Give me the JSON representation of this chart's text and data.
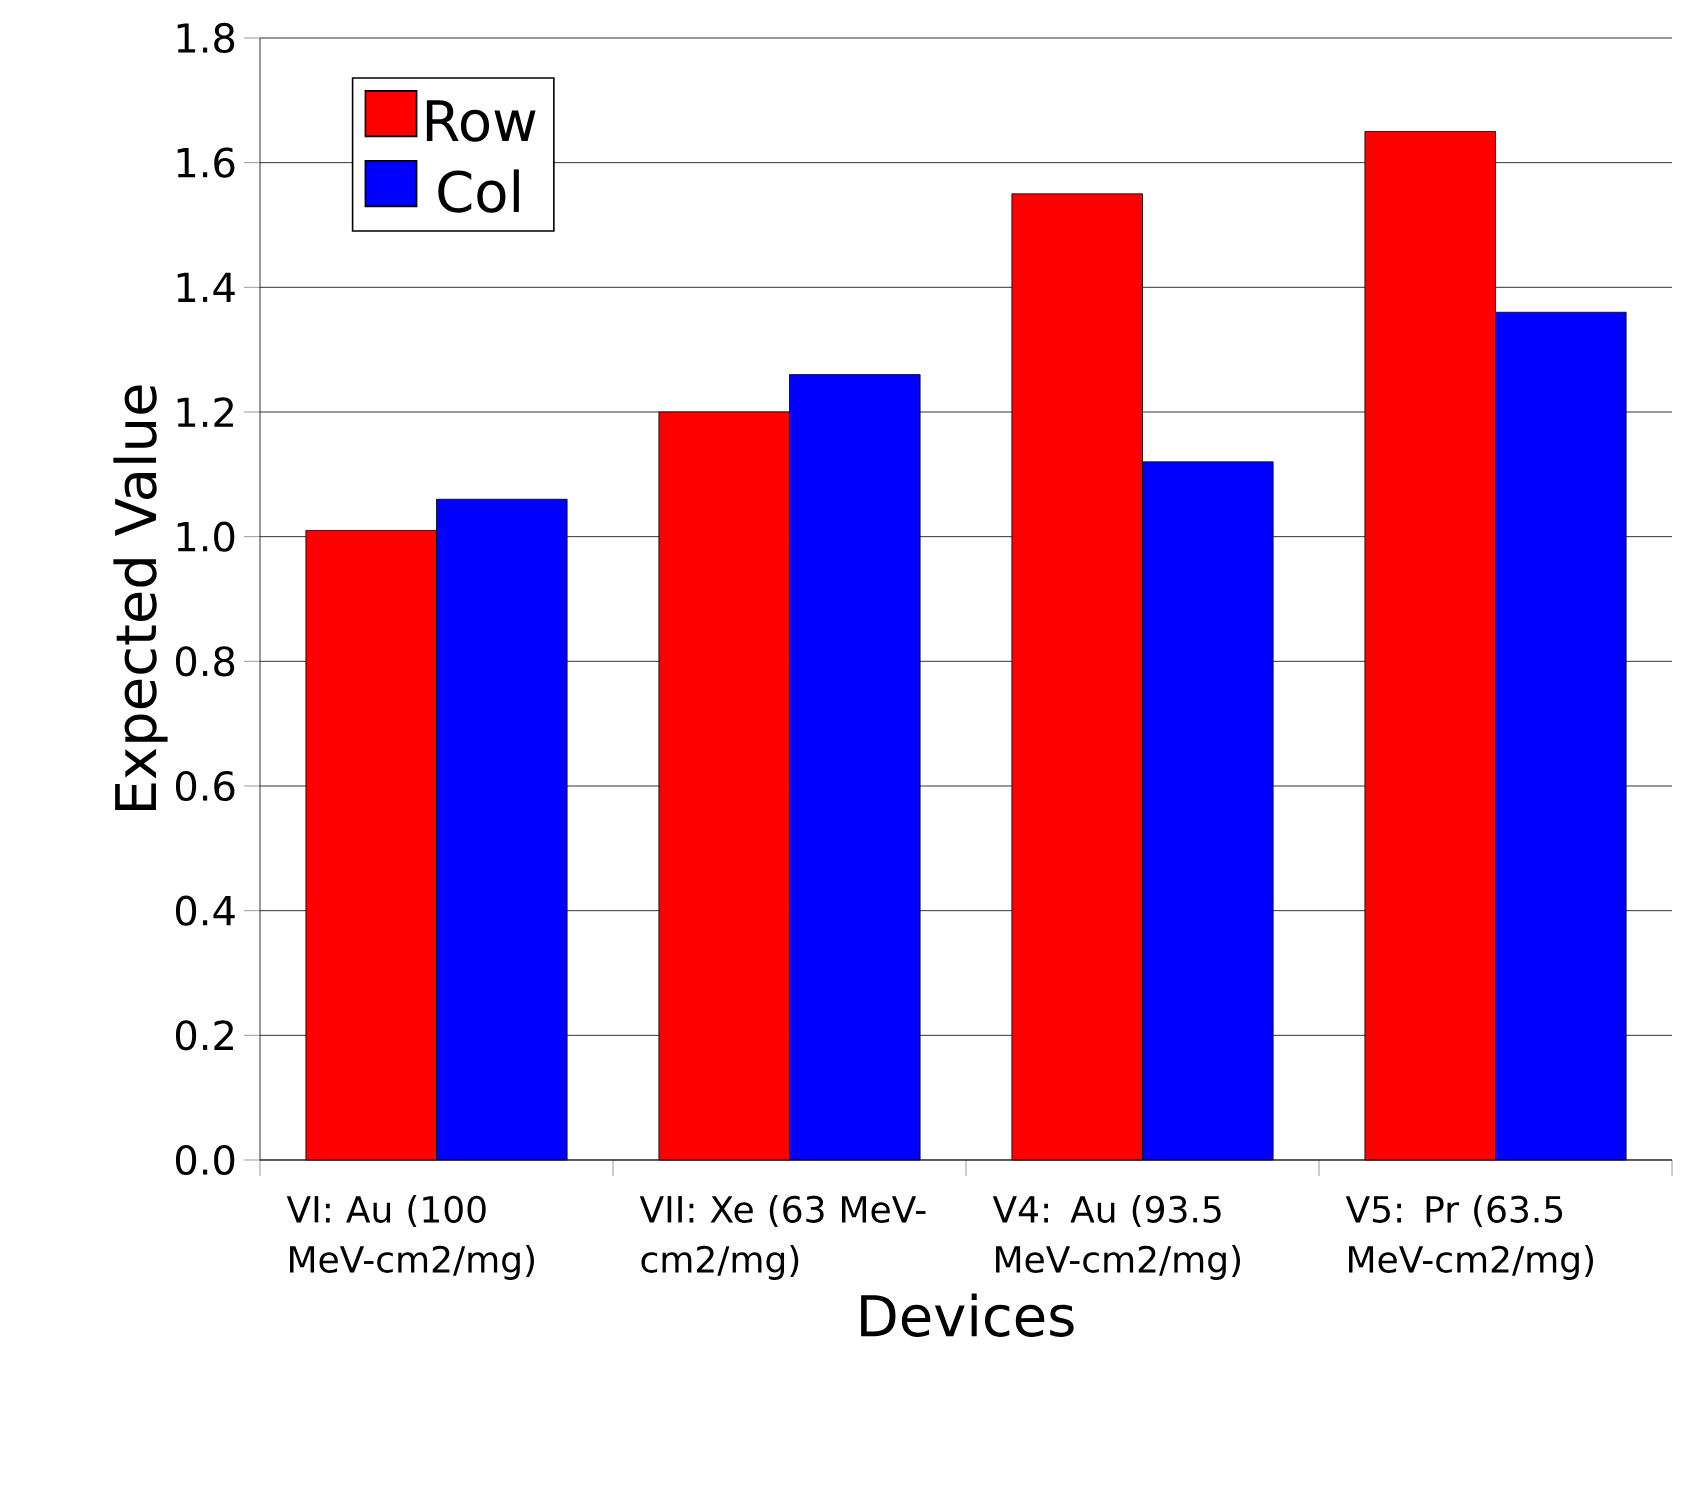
{
  "chart_data": {
    "type": "bar",
    "xlabel": "Devices",
    "ylabel": "Expected Value",
    "categories": [
      "VI: Au (100 MeV-cm2/mg)",
      "VII: Xe (63 MeV-cm2/mg)",
      "V4: Au (93.5 MeV-cm2/mg)",
      "V5: Pr (63.5 MeV-cm2/mg)"
    ],
    "series": [
      {
        "name": "Row",
        "color": "#ff0000",
        "values": [
          1.01,
          1.2,
          1.55,
          1.65
        ]
      },
      {
        "name": "Col",
        "color": "#0000ff",
        "values": [
          1.06,
          1.26,
          1.12,
          1.36
        ]
      }
    ],
    "ylim": [
      0,
      1.8
    ],
    "yticks": [
      {
        "value": 0,
        "label": "0.0"
      },
      {
        "value": 0.2,
        "label": "0.2"
      },
      {
        "value": 0.4,
        "label": "0.4"
      },
      {
        "value": 0.6,
        "label": "0.6"
      },
      {
        "value": 0.8,
        "label": "0.8"
      },
      {
        "value": 1,
        "label": "1.0"
      },
      {
        "value": 1.2,
        "label": "1.2"
      },
      {
        "value": 1.4,
        "label": "1.4"
      },
      {
        "value": 1.6,
        "label": "1.6"
      },
      {
        "value": 1.8,
        "label": "1.8"
      }
    ],
    "grid": "y",
    "legend": "top left"
  }
}
